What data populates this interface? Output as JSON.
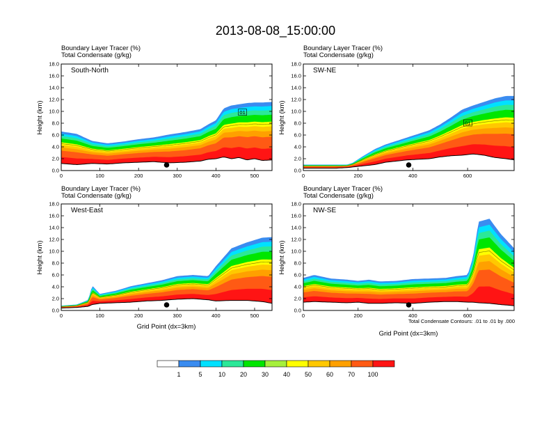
{
  "title": "2013-08-08_15:00:00",
  "subtitle_line1": "Boundary Layer Tracer   (%)",
  "subtitle_line2": "Total Condensate   (g/kg)",
  "ylabel": "Height (km)",
  "xlabel": "Grid Point (dx=3km)",
  "contour_note": "Total Condensate Contours: .01 to .01 by .000",
  "y_ticks": [
    "0.0",
    "2.0",
    "4.0",
    "6.0",
    "8.0",
    "10.0",
    "12.0",
    "14.0",
    "16.0",
    "18.0"
  ],
  "colorbar": {
    "colors": [
      "#ffffff",
      "#3a8cf0",
      "#00e1ff",
      "#2be898",
      "#00e600",
      "#a6f03c",
      "#ffff00",
      "#ffc800",
      "#ffa000",
      "#ff5a14",
      "#ff1414"
    ],
    "labels": [
      "1",
      "5",
      "10",
      "20",
      "30",
      "40",
      "50",
      "60",
      "70",
      "100"
    ]
  },
  "chart_data": [
    {
      "type": "heatmap",
      "name": "South-North",
      "xlim": [
        0,
        545
      ],
      "ylim": [
        0,
        18
      ],
      "x_ticks": [
        "0",
        "100",
        "200",
        "300",
        "400",
        "500"
      ],
      "x": [
        0,
        40,
        80,
        120,
        160,
        200,
        240,
        280,
        320,
        360,
        380,
        400,
        420,
        440,
        460,
        480,
        500,
        520,
        545
      ],
      "terrain_km": [
        1.2,
        1.0,
        1.2,
        1.1,
        1.3,
        1.4,
        1.5,
        1.3,
        1.4,
        1.6,
        1.9,
        2.0,
        2.3,
        2.0,
        2.2,
        1.8,
        2.0,
        1.7,
        1.8
      ],
      "tracer_top_km": [
        6.6,
        6.2,
        5.0,
        4.6,
        4.9,
        5.3,
        5.6,
        6.1,
        6.5,
        7.0,
        7.8,
        8.5,
        10.5,
        11.0,
        11.2,
        11.4,
        11.5,
        11.5,
        11.6
      ],
      "contour_label": "01",
      "has_marker": true
    },
    {
      "type": "heatmap",
      "name": "SW-NE",
      "xlim": [
        0,
        770
      ],
      "ylim": [
        0,
        18
      ],
      "x_ticks": [
        "0",
        "200",
        "400",
        "600"
      ],
      "x": [
        0,
        60,
        120,
        160,
        180,
        220,
        260,
        300,
        340,
        380,
        420,
        460,
        500,
        540,
        580,
        620,
        660,
        700,
        740,
        770
      ],
      "terrain_km": [
        0.4,
        0.4,
        0.4,
        0.5,
        0.6,
        0.8,
        1.0,
        1.4,
        1.6,
        1.8,
        1.9,
        2.0,
        2.3,
        2.5,
        2.6,
        2.8,
        2.6,
        2.2,
        2.0,
        1.8
      ],
      "tracer_top_km": [
        1.0,
        1.0,
        1.0,
        1.0,
        1.3,
        2.5,
        3.6,
        4.4,
        5.0,
        5.6,
        6.2,
        6.8,
        7.8,
        9.0,
        10.3,
        11.0,
        11.6,
        12.2,
        12.6,
        12.6
      ],
      "contour_label": "01",
      "has_marker": true
    },
    {
      "type": "heatmap",
      "name": "West-East",
      "xlim": [
        0,
        545
      ],
      "ylim": [
        0,
        18
      ],
      "x_ticks": [
        "0",
        "100",
        "200",
        "300",
        "400",
        "500"
      ],
      "x": [
        0,
        40,
        70,
        80,
        100,
        140,
        180,
        220,
        260,
        300,
        340,
        380,
        400,
        440,
        480,
        520,
        545
      ],
      "terrain_km": [
        0.4,
        0.5,
        0.7,
        1.0,
        1.2,
        1.3,
        1.4,
        1.6,
        1.7,
        1.9,
        2.0,
        1.8,
        1.6,
        1.7,
        1.7,
        1.5,
        1.2
      ],
      "tracer_top_km": [
        0.8,
        1.0,
        1.8,
        4.2,
        2.8,
        3.3,
        4.1,
        4.6,
        5.1,
        5.8,
        6.0,
        5.8,
        7.5,
        10.5,
        11.5,
        12.3,
        12.4
      ],
      "contour_label": "",
      "has_marker": true
    },
    {
      "type": "heatmap",
      "name": "NW-SE",
      "xlim": [
        0,
        770
      ],
      "ylim": [
        0,
        18
      ],
      "x_ticks": [
        "0",
        "200",
        "400",
        "600"
      ],
      "x": [
        0,
        40,
        100,
        160,
        200,
        240,
        280,
        340,
        400,
        460,
        520,
        560,
        600,
        620,
        640,
        680,
        720,
        770
      ],
      "terrain_km": [
        1.4,
        1.5,
        1.4,
        1.3,
        1.4,
        1.2,
        1.2,
        1.3,
        1.2,
        1.4,
        1.5,
        1.5,
        1.4,
        1.4,
        1.3,
        1.2,
        1.0,
        0.8
      ],
      "tracer_top_km": [
        5.5,
        6.0,
        5.4,
        5.2,
        5.0,
        5.2,
        4.9,
        5.0,
        5.3,
        5.4,
        5.5,
        5.8,
        6.0,
        9.0,
        15.0,
        15.5,
        13.0,
        10.5
      ],
      "contour_label": "",
      "has_marker": true
    }
  ]
}
